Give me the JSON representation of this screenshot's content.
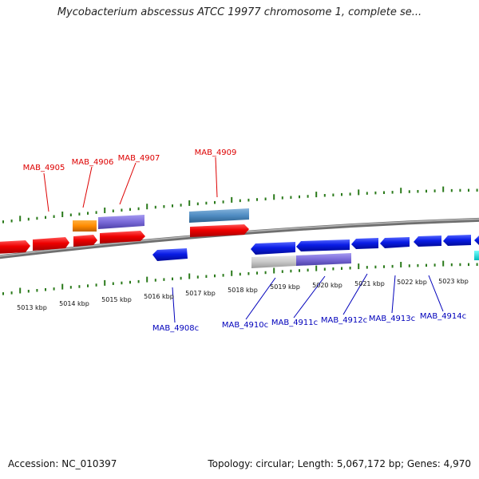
{
  "title": "Mycobacterium abscessus ATCC 19977 chromosome 1, complete se...",
  "footer": {
    "accession": "Accession: NC_010397",
    "topology": "Topology: circular; Length: 5,067,172 bp; Genes: 4,970"
  },
  "colors": {
    "forward_label": "#dd0000",
    "reverse_label": "#0000bb",
    "tick": "#2a7a1a",
    "backbone": "#7a7a7a"
  },
  "scale_labels": [
    "5013 kbp",
    "5014 kbp",
    "5015 kbp",
    "5016 kbp",
    "5017 kbp",
    "5018 kbp",
    "5019 kbp",
    "5020 kbp",
    "5021 kbp",
    "5022 kbp",
    "5023 kbp"
  ],
  "gene_labels_forward": [
    "MAB_4905",
    "MAB_4906",
    "MAB_4907",
    "MAB_4909"
  ],
  "gene_labels_reverse": [
    "MAB_4908c",
    "MAB_4910c",
    "MAB_4911c",
    "MAB_4912c",
    "MAB_4913c",
    "MAB_4914c"
  ]
}
